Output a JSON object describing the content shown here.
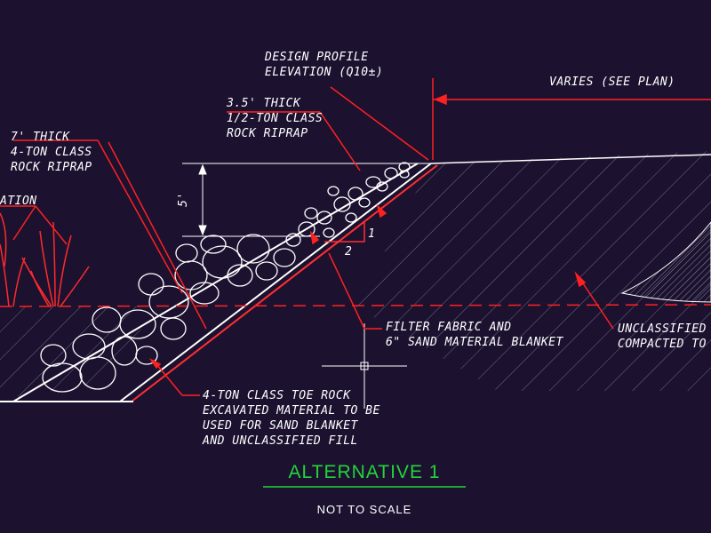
{
  "labels": {
    "design_profile": "DESIGN PROFILE\nELEVATION (Q10±)",
    "varies": "VARIES (SEE PLAN)",
    "thin_riprap": "3.5' THICK\n1/2-TON CLASS\nROCK RIPRAP",
    "thick_riprap": "7' THICK\n4-TON CLASS\nROCK RIPRAP",
    "vegetation": "ATION",
    "dimension_5": "5'",
    "slope_rise": "1",
    "slope_run": "2",
    "filter_fabric": "FILTER FABRIC AND\n6\" SAND MATERIAL BLANKET",
    "unclassified": "UNCLASSIFIED I\nCOMPACTED TO",
    "toe_rock": "4-TON CLASS TOE ROCK\nEXCAVATED MATERIAL TO BE\nUSED FOR SAND BLANKET\nAND UNCLASSIFIED FILL"
  },
  "title": "ALTERNATIVE 1",
  "subtitle": "NOT TO SCALE",
  "colors": {
    "background": "#1c1230",
    "linework": "#ffffff",
    "leader": "#ff1a1a",
    "title": "#22d43a",
    "hatch": "#6f6a86"
  }
}
